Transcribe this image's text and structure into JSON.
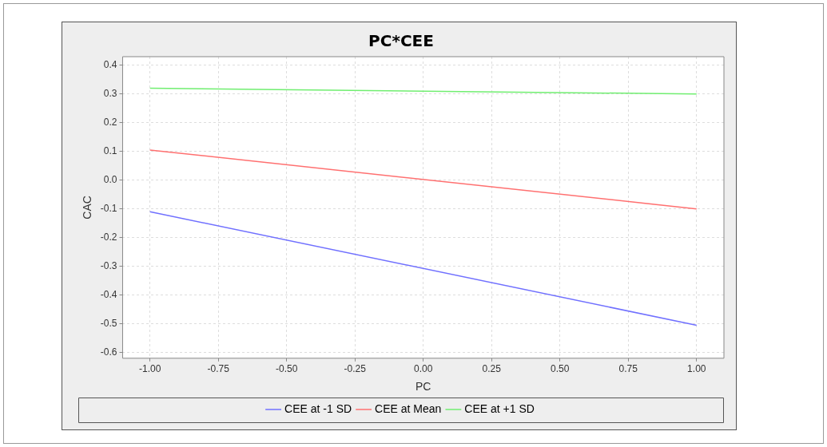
{
  "chart_data": {
    "type": "line",
    "title": "PC*CEE",
    "xlabel": "PC",
    "ylabel": "CAC",
    "xlim": [
      -1.1,
      1.1
    ],
    "xticks": [
      {
        "value": -1,
        "label": "-1.00"
      },
      {
        "value": -0.75,
        "label": "-0.75"
      },
      {
        "value": -0.5,
        "label": "-0.50"
      },
      {
        "value": -0.25,
        "label": "-0.25"
      },
      {
        "value": 0,
        "label": "0.00"
      },
      {
        "value": 0.25,
        "label": "0.25"
      },
      {
        "value": 0.5,
        "label": "0.50"
      },
      {
        "value": 0.75,
        "label": "0.75"
      },
      {
        "value": 1,
        "label": "1.00"
      }
    ],
    "ylim": [
      -0.62,
      0.43
    ],
    "yticks": [
      {
        "value": -0.6,
        "label": "-0.6"
      },
      {
        "value": -0.5,
        "label": "-0.5"
      },
      {
        "value": -0.4,
        "label": "-0.4"
      },
      {
        "value": -0.3,
        "label": "-0.3"
      },
      {
        "value": -0.2,
        "label": "-0.2"
      },
      {
        "value": -0.1,
        "label": "-0.1"
      },
      {
        "value": 0,
        "label": "0.0"
      },
      {
        "value": 0.1,
        "label": "0.1"
      },
      {
        "value": 0.2,
        "label": "0.2"
      },
      {
        "value": 0.3,
        "label": "0.3"
      },
      {
        "value": 0.4,
        "label": "0.4"
      }
    ],
    "x": [
      -1,
      1
    ],
    "grid": true,
    "legend": "bottom",
    "marker": "none",
    "line_style": "solid",
    "series": [
      {
        "name": "CEE at -1 SD",
        "color": "#7070ff",
        "values": [
          -0.11,
          -0.505
        ]
      },
      {
        "name": "CEE at Mean",
        "color": "#ff7070",
        "values": [
          0.105,
          -0.1
        ]
      },
      {
        "name": "CEE at +1 SD",
        "color": "#70ee70",
        "values": [
          0.32,
          0.3
        ]
      }
    ]
  }
}
